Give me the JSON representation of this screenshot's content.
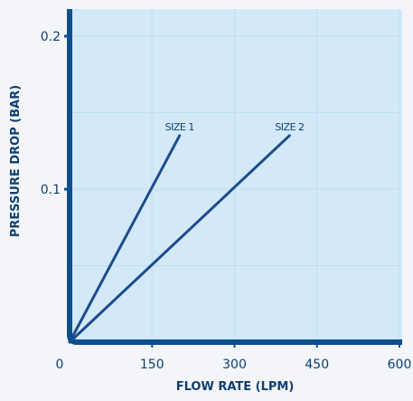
{
  "chart_data": {
    "type": "line",
    "title": "",
    "xlabel": "FLOW RATE (LPM)",
    "ylabel": "PRESSURE DROP (BAR)",
    "xlim": [
      0,
      600
    ],
    "ylim": [
      0,
      0.2
    ],
    "x_ticks": [
      0,
      150,
      300,
      450,
      600
    ],
    "x_tick_labels": [
      "0",
      "150",
      "300",
      "450",
      "600"
    ],
    "y_ticks": [
      0.1,
      0.2
    ],
    "y_tick_labels": [
      "0.1",
      "0.2"
    ],
    "grid": true,
    "series": [
      {
        "name": "SIZE 1",
        "x": [
          0,
          200
        ],
        "y": [
          0,
          0.135
        ]
      },
      {
        "name": "SIZE 2",
        "x": [
          0,
          400
        ],
        "y": [
          0,
          0.135
        ]
      }
    ]
  },
  "colors": {
    "page_background": "#f3f5f8",
    "plot_background": "#d3e9f8",
    "grid": "#bcdff4",
    "axis": "#0d4f8b",
    "series_line": "#1c4c8d",
    "text": "#0d3f72"
  }
}
